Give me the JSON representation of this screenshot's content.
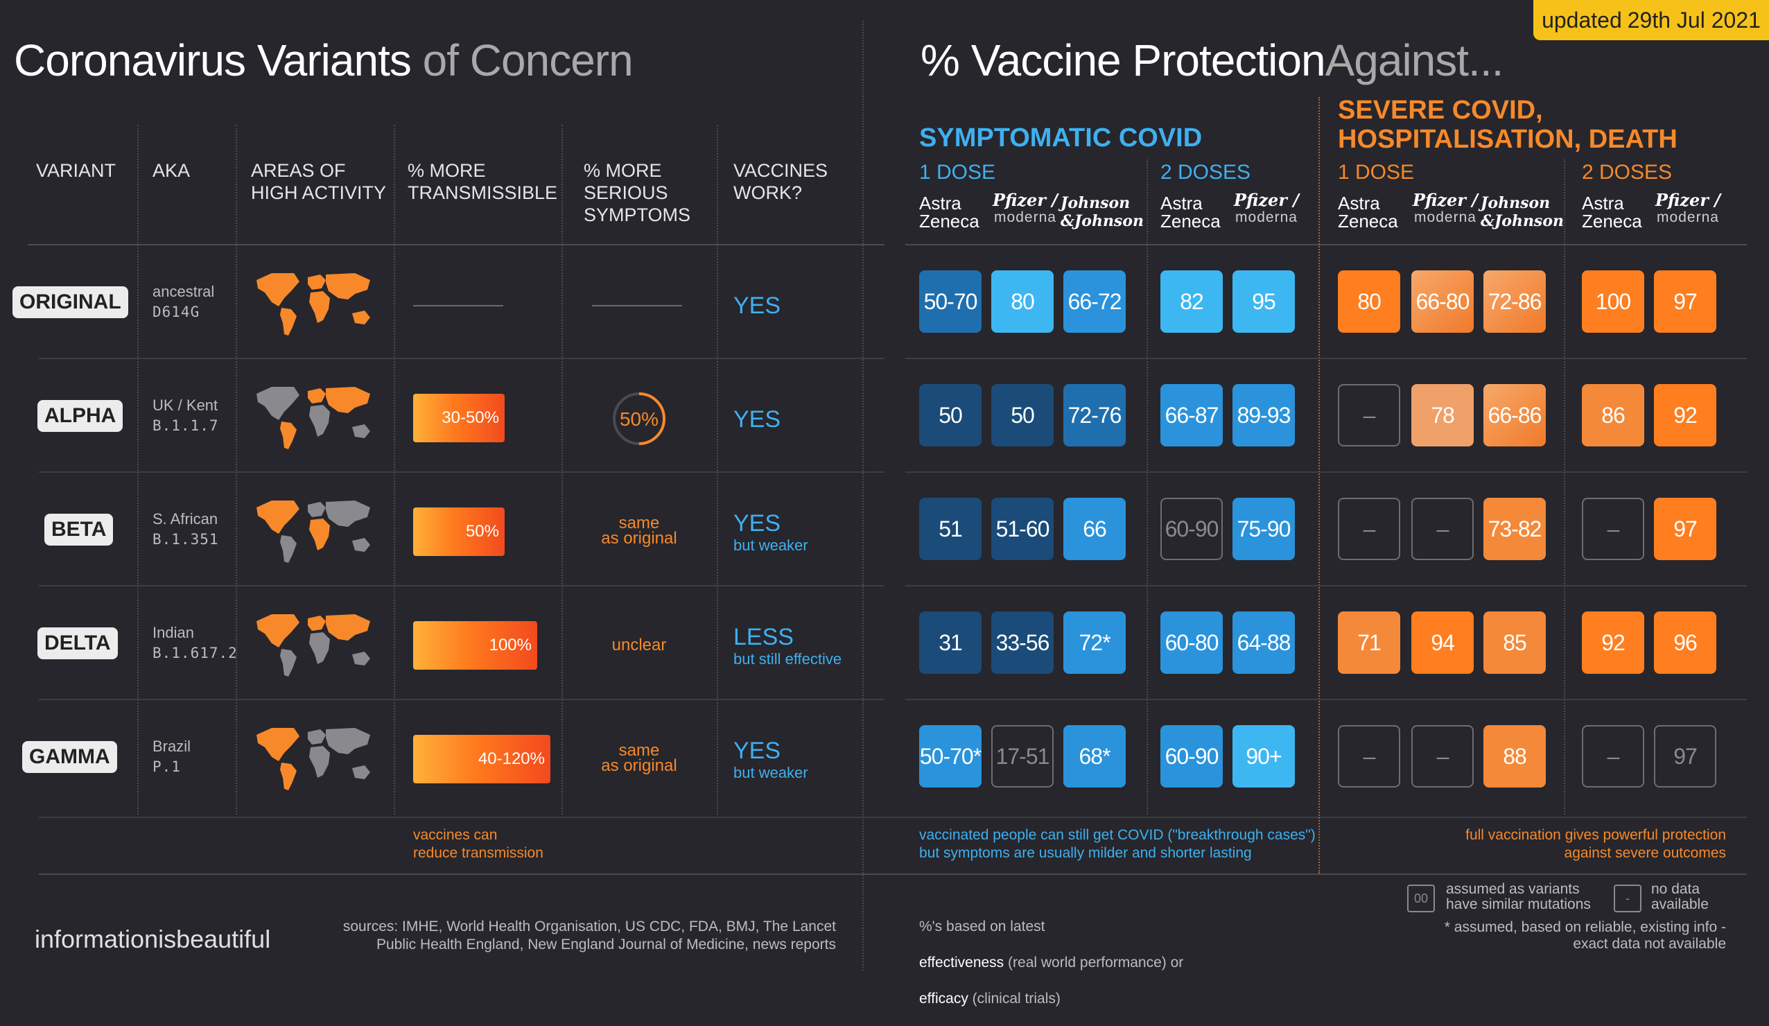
{
  "updated": {
    "label": "updated",
    "date": "29th Jul 2021"
  },
  "title_left": {
    "main": "Coronavirus Variants",
    "dim": "of Concern"
  },
  "title_right": {
    "main": "% Vaccine Protection",
    "dim": "Against..."
  },
  "columns": {
    "variant": "VARIANT",
    "aka": "AKA",
    "areas": "AREAS OF\nHIGH ACTIVITY",
    "transmissible": "% MORE\nTRANSMISSIBLE",
    "serious": "% MORE\nSERIOUS\nSYMPTOMS",
    "vaccines": "VACCINES\nWORK?"
  },
  "sections": {
    "symptomatic": "SYMPTOMATIC COVID",
    "severe": "SEVERE COVID,\nHOSPITALISATION, DEATH",
    "dose1": "1 DOSE",
    "dose2": "2 DOSES"
  },
  "vaccines": {
    "astra": "Astra\nZeneca",
    "pfizer": "Pfizer /",
    "pfizer_sub": "moderna",
    "jj": "Johnson\n&Johnson"
  },
  "chart_data": {
    "type": "table",
    "variants": [
      {
        "name": "ORIGINAL",
        "aka1": "ancestral",
        "aka2": "D614G",
        "transmissible": "",
        "transmissible_max_pct": 0,
        "serious": "",
        "serious_pct": 0,
        "vaccines_work": "YES",
        "vaccines_note": "",
        "symptomatic_dose1": [
          "50-70",
          "80",
          "66-72"
        ],
        "symptomatic_dose2": [
          "82",
          "95"
        ],
        "severe_dose1": [
          "80",
          "66-80",
          "72-86"
        ],
        "severe_dose2": [
          "100",
          "97"
        ]
      },
      {
        "name": "ALPHA",
        "aka1": "UK / Kent",
        "aka2": "B.1.1.7",
        "transmissible": "30-50%",
        "transmissible_max_pct": 50,
        "serious": "50%",
        "serious_pct": 50,
        "vaccines_work": "YES",
        "vaccines_note": "",
        "symptomatic_dose1": [
          "50",
          "50",
          "72-76"
        ],
        "symptomatic_dose2": [
          "66-87",
          "89-93"
        ],
        "severe_dose1": [
          "–",
          "78",
          "66-86"
        ],
        "severe_dose2": [
          "86",
          "92"
        ]
      },
      {
        "name": "BETA",
        "aka1": "S. African",
        "aka2": "B.1.351",
        "transmissible": "50%",
        "transmissible_max_pct": 50,
        "serious": "same\nas original",
        "serious_pct": 0,
        "vaccines_work": "YES",
        "vaccines_note": "but weaker",
        "symptomatic_dose1": [
          "51",
          "51-60",
          "66"
        ],
        "symptomatic_dose2": [
          "60-90",
          "75-90"
        ],
        "severe_dose1": [
          "–",
          "–",
          "73-82"
        ],
        "severe_dose2": [
          "–",
          "97"
        ]
      },
      {
        "name": "DELTA",
        "aka1": "Indian",
        "aka2": "B.1.617.2",
        "transmissible": "100%",
        "transmissible_max_pct": 100,
        "serious": "unclear",
        "serious_pct": 0,
        "vaccines_work": "LESS",
        "vaccines_note": "but still effective",
        "symptomatic_dose1": [
          "31",
          "33-56",
          "72*"
        ],
        "symptomatic_dose2": [
          "60-80",
          "64-88"
        ],
        "severe_dose1": [
          "71",
          "94",
          "85"
        ],
        "severe_dose2": [
          "92",
          "96"
        ]
      },
      {
        "name": "GAMMA",
        "aka1": "Brazil",
        "aka2": "P.1",
        "transmissible": "40-120%",
        "transmissible_max_pct": 120,
        "serious": "same\nas original",
        "serious_pct": 0,
        "vaccines_work": "YES",
        "vaccines_note": "but weaker",
        "symptomatic_dose1": [
          "50-70*",
          "17-51",
          "68*"
        ],
        "symptomatic_dose2": [
          "60-90",
          "90+"
        ],
        "severe_dose1": [
          "–",
          "–",
          "88"
        ],
        "severe_dose2": [
          "–",
          "97"
        ]
      }
    ]
  },
  "notes": {
    "transmission": "vaccines can\nreduce transmission",
    "breakthrough": "vaccinated people can still get COVID (\"breakthrough cases\")\nbut symptoms are usually milder and shorter lasting",
    "full": "full vaccination gives powerful protection\nagainst severe outcomes",
    "based_on": "%'s based on latest",
    "effectiveness": "effectiveness",
    "effectiveness_note": "(real world performance) or",
    "efficacy": "efficacy",
    "efficacy_note": "(clinical trials)",
    "legend_assumed_box": "00",
    "legend_assumed": "assumed as variants\nhave similar mutations",
    "legend_nodata_box": "-",
    "legend_nodata": "no data\navailable",
    "asterisk": "* assumed,  based on reliable, existing info -\nexact data not available",
    "sources": "sources: IMHE, World Health Organisation, US CDC, FDA, BMJ, The Lancet\nPublic Health England, New England Journal of Medicine, news reports",
    "brand": "informationisbeautiful"
  },
  "colors": {
    "background": "#26262c",
    "blue": "#3fb0f0",
    "orange": "#f7892a",
    "yellow": "#f6c21a"
  }
}
